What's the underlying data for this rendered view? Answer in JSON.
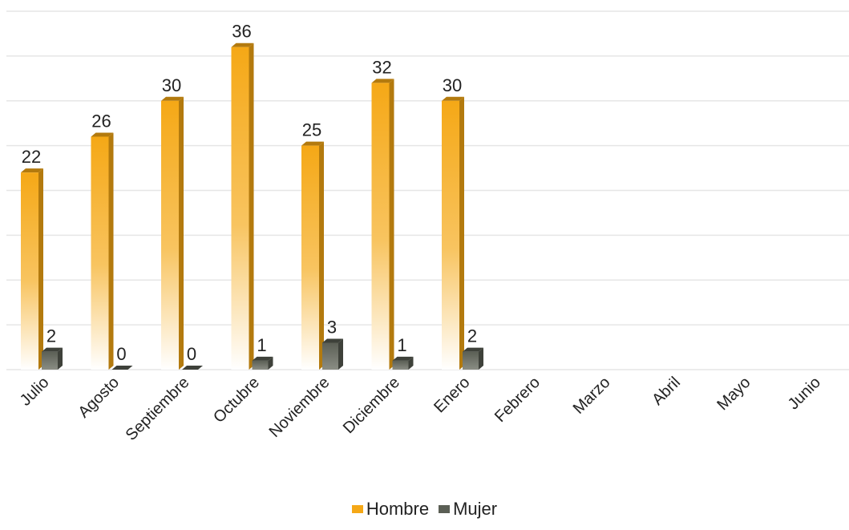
{
  "chart_data": {
    "type": "bar",
    "categories": [
      "Julio",
      "Agosto",
      "Septiembre",
      "Octubre",
      "Noviembre",
      "Diciembre",
      "Enero",
      "Febrero",
      "Marzo",
      "Abril",
      "Mayo",
      "Junio"
    ],
    "series": [
      {
        "name": "Hombre",
        "values": [
          22,
          26,
          30,
          36,
          25,
          32,
          30,
          null,
          null,
          null,
          null,
          null
        ],
        "color": "#F5A816",
        "side_color": "#B37A0E"
      },
      {
        "name": "Mujer",
        "values": [
          2,
          0,
          0,
          1,
          3,
          1,
          2,
          null,
          null,
          null,
          null,
          null
        ],
        "color": "#5B5F55",
        "side_color": "#3E413A"
      }
    ],
    "ylim": [
      0,
      40
    ],
    "grid": true,
    "legend": "bottom",
    "data_labels": true
  }
}
